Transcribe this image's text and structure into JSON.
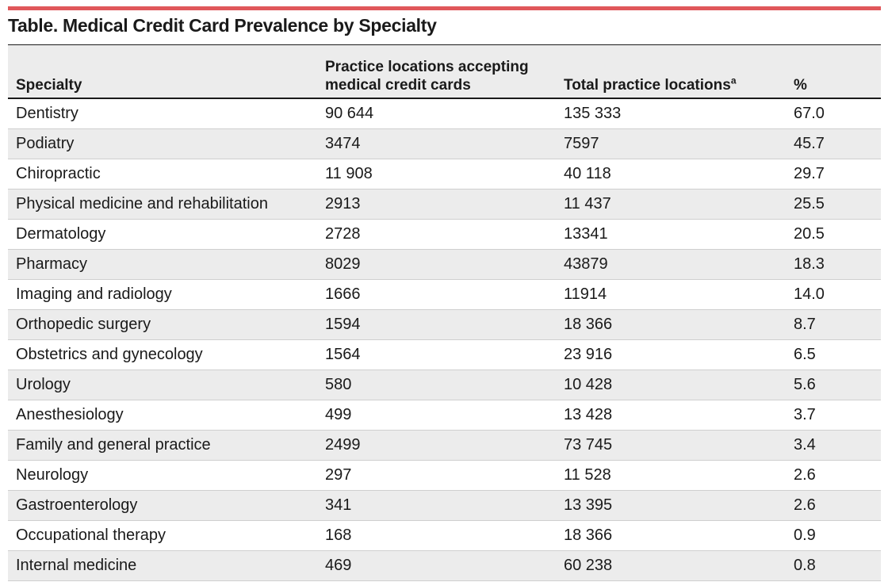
{
  "title": "Table. Medical Credit Card Prevalence by Specialty",
  "columns": [
    {
      "label": "Specialty",
      "sup": ""
    },
    {
      "label": "Practice locations accepting medical credit cards",
      "sup": ""
    },
    {
      "label": "Total practice locations",
      "sup": "a"
    },
    {
      "label": "%",
      "sup": ""
    }
  ],
  "rows": [
    [
      "Dentistry",
      "90 644",
      "135 333",
      "67.0"
    ],
    [
      "Podiatry",
      "3474",
      "7597",
      "45.7"
    ],
    [
      "Chiropractic",
      "11 908",
      "40 118",
      "29.7"
    ],
    [
      "Physical medicine and rehabilitation",
      "2913",
      "11 437",
      "25.5"
    ],
    [
      "Dermatology",
      "2728",
      "13341",
      "20.5"
    ],
    [
      "Pharmacy",
      "8029",
      "43879",
      "18.3"
    ],
    [
      "Imaging and radiology",
      "1666",
      "11914",
      "14.0"
    ],
    [
      "Orthopedic surgery",
      "1594",
      "18 366",
      "8.7"
    ],
    [
      "Obstetrics and gynecology",
      "1564",
      "23 916",
      "6.5"
    ],
    [
      "Urology",
      "580",
      "10 428",
      "5.6"
    ],
    [
      "Anesthesiology",
      "499",
      "13 428",
      "3.7"
    ],
    [
      "Family and general practice",
      "2499",
      "73 745",
      "3.4"
    ],
    [
      "Neurology",
      "297",
      "11 528",
      "2.6"
    ],
    [
      "Gastroenterology",
      "341",
      "13 395",
      "2.6"
    ],
    [
      "Occupational therapy",
      "168",
      "18 366",
      "0.9"
    ],
    [
      "Internal medicine",
      "469",
      "60 238",
      "0.8"
    ]
  ],
  "colors": {
    "accent_rule": "#e0575a",
    "stripe": "#ececec",
    "text": "#1a1a1a",
    "row_divider": "#cfcfcf"
  }
}
